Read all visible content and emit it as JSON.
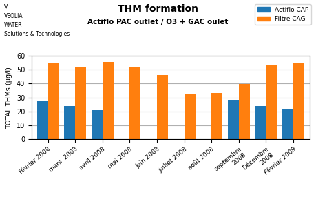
{
  "chart_data": {
    "type": "bar",
    "title": "THM formation",
    "subtitle": "Actiflo PAC outlet / O3 + GAC oulet",
    "y_label": "TOTAL THMs (µg/l)",
    "categories": [
      "février 2008",
      "mars  2008",
      "avril 2008",
      "mai 2008",
      "juin 2008",
      "juillet 2008",
      "août 2008",
      "septembre\n2008",
      "Décembre\n2008",
      "Février 2009"
    ],
    "series": [
      {
        "name": "Actiflo CAP",
        "values": [
          28,
          24,
          21,
          null,
          null,
          null,
          null,
          28.5,
          24,
          21.5
        ]
      },
      {
        "name": "Filtre CAG",
        "values": [
          54.5,
          51.5,
          55.5,
          51.5,
          46,
          33,
          33.5,
          39.5,
          53,
          55
        ]
      }
    ],
    "ylim": [
      0,
      60
    ],
    "yticks": [
      0,
      10,
      20,
      30,
      40,
      50,
      60
    ],
    "grid": true,
    "legend": "upper right",
    "annotations": [
      "V",
      "VEOLIA",
      "WATER",
      "Solutions & Technologies"
    ]
  }
}
